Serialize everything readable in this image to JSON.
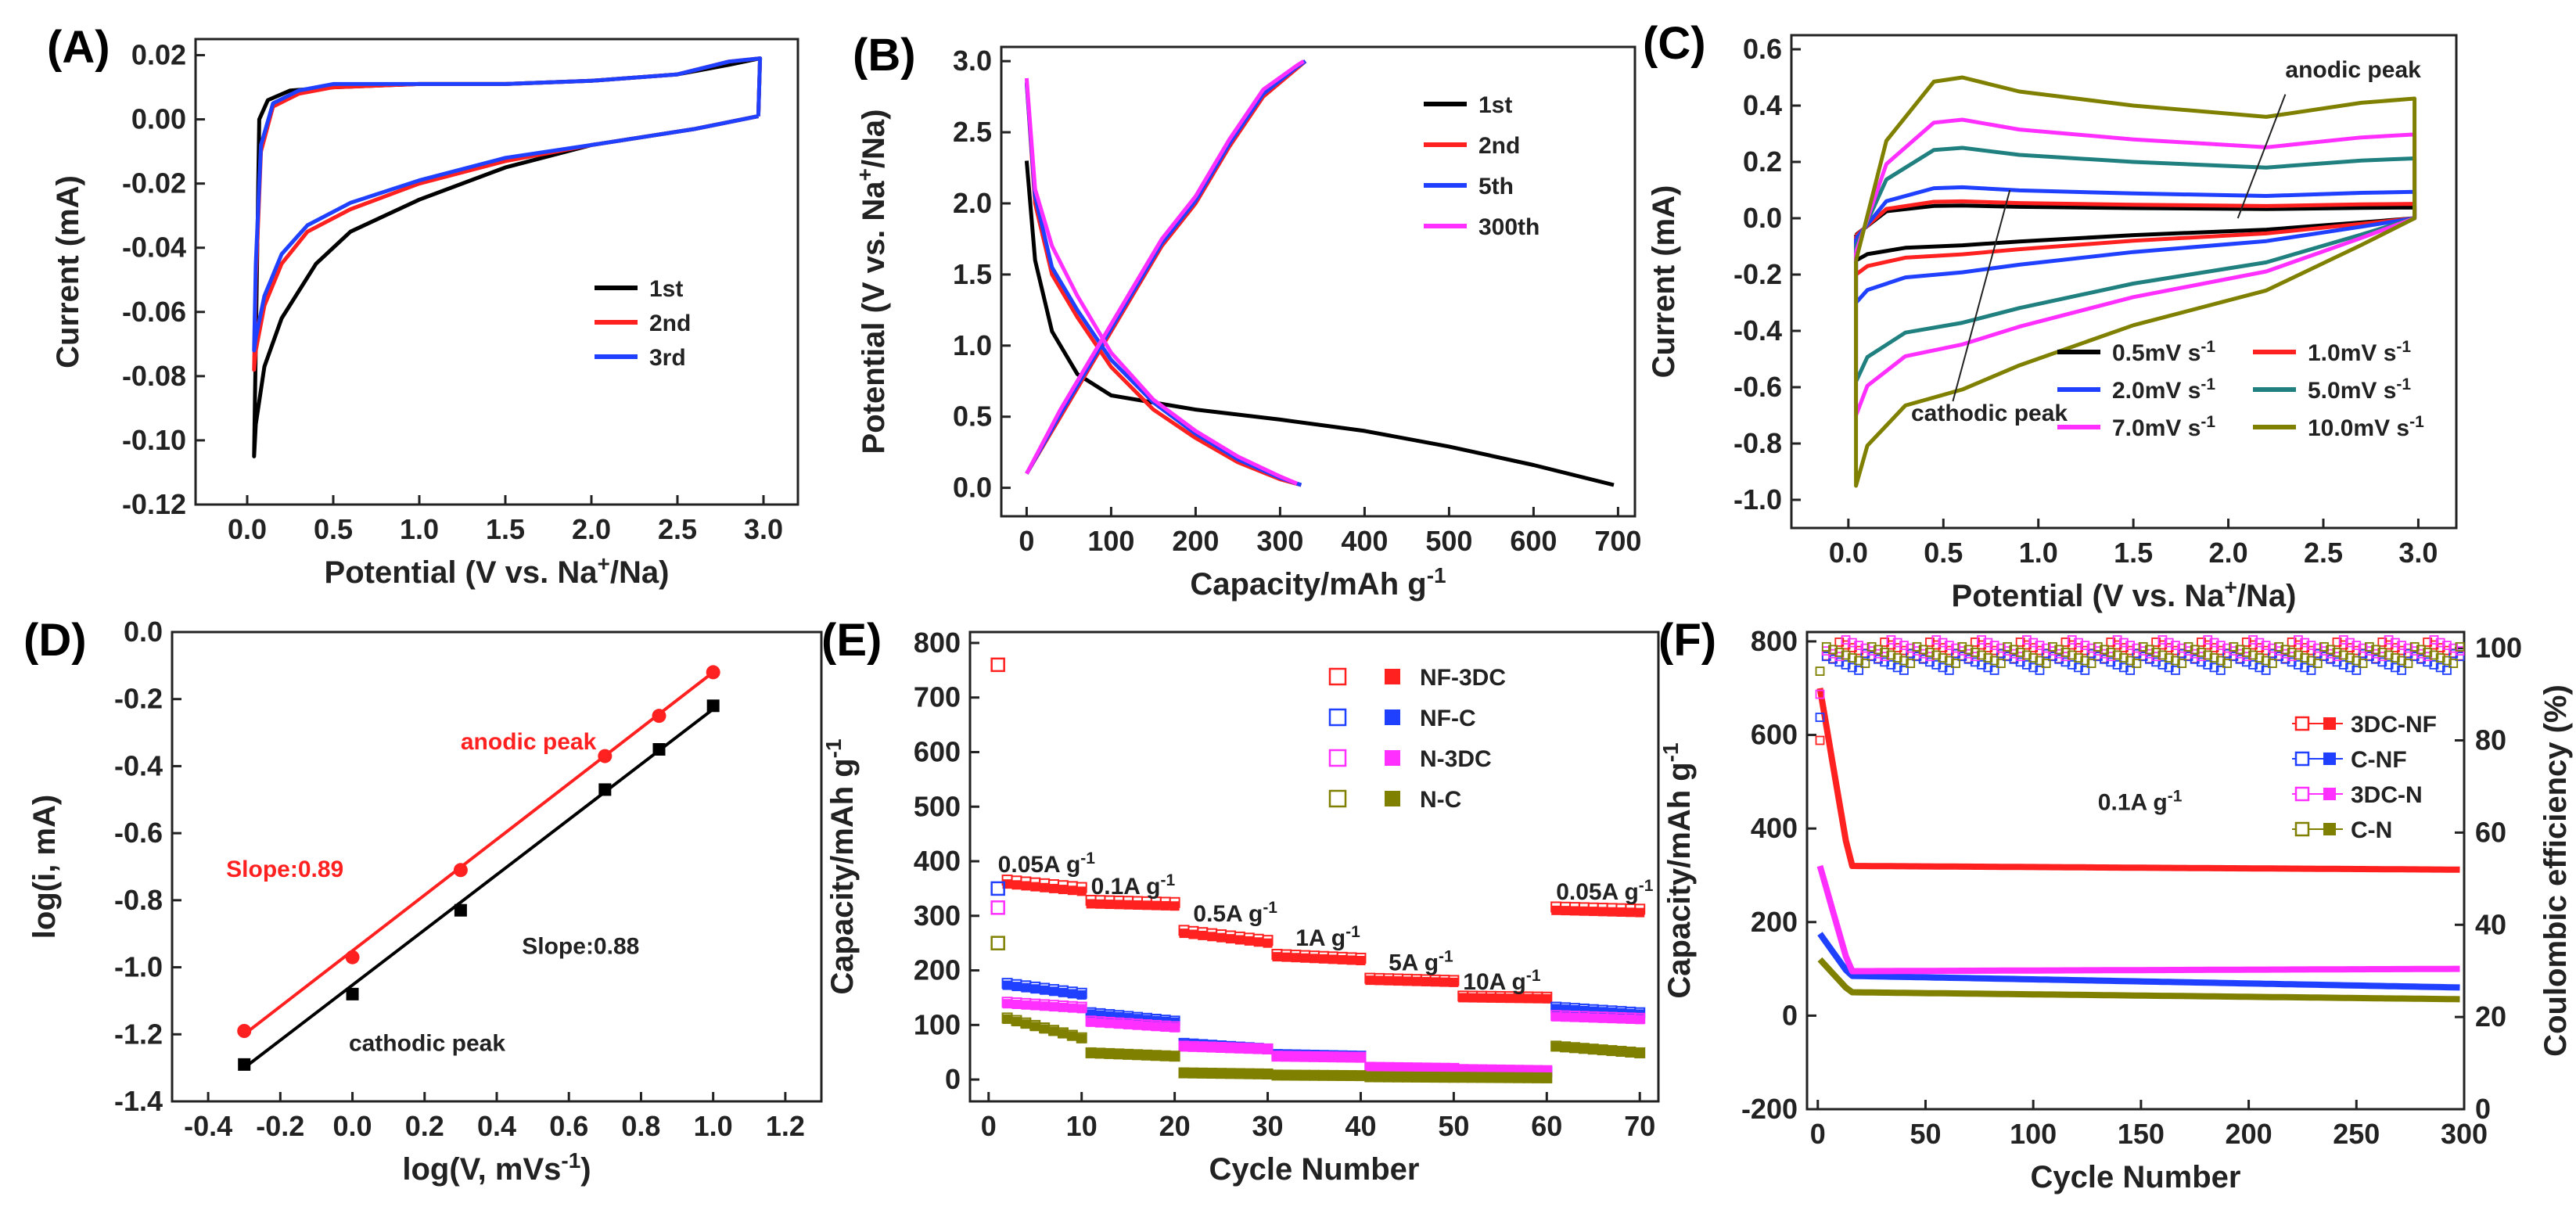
{
  "chart_data": [
    {
      "id": "A",
      "panel": "(A)",
      "type": "line",
      "xlabel": "Potential (V vs. Na+/Na)",
      "ylabel": "Current (mA)",
      "xlim": [
        -0.3,
        3.2
      ],
      "ylim": [
        -0.12,
        0.025
      ],
      "xticks": [
        0.0,
        0.5,
        1.0,
        1.5,
        2.0,
        2.5,
        3.0
      ],
      "xtick_labels": [
        "0.0",
        "0.5",
        "1.0",
        "1.5",
        "2.0",
        "2.5",
        "3.0"
      ],
      "yticks": [
        -0.12,
        -0.1,
        -0.08,
        -0.06,
        -0.04,
        -0.02,
        0.0,
        0.02
      ],
      "ytick_labels": [
        "-0.12",
        "-0.10",
        "-0.08",
        "-0.06",
        "-0.04",
        "-0.02",
        "0.00",
        "0.02"
      ],
      "legend": "center-right",
      "series": [
        {
          "name": "1st",
          "color": "#000000",
          "x": [
            2.97,
            2.6,
            2.0,
            1.5,
            1.0,
            0.6,
            0.4,
            0.2,
            0.1,
            0.05,
            0.04,
            0.05,
            0.07,
            0.12,
            0.25,
            0.5,
            1.0,
            1.5,
            2.0,
            2.5,
            2.8,
            2.98,
            2.97
          ],
          "y": [
            0.001,
            -0.003,
            -0.008,
            -0.015,
            -0.025,
            -0.035,
            -0.045,
            -0.062,
            -0.077,
            -0.095,
            -0.105,
            -0.07,
            0.0,
            0.006,
            0.009,
            0.01,
            0.011,
            0.011,
            0.012,
            0.014,
            0.017,
            0.019,
            0.001
          ]
        },
        {
          "name": "2nd",
          "color": "#ff2020",
          "x": [
            2.97,
            2.6,
            2.0,
            1.5,
            1.0,
            0.6,
            0.35,
            0.2,
            0.1,
            0.05,
            0.04,
            0.05,
            0.08,
            0.15,
            0.3,
            0.5,
            1.0,
            1.5,
            2.0,
            2.5,
            2.8,
            2.98,
            2.97
          ],
          "y": [
            0.001,
            -0.003,
            -0.008,
            -0.013,
            -0.02,
            -0.028,
            -0.035,
            -0.045,
            -0.058,
            -0.072,
            -0.078,
            -0.05,
            -0.01,
            0.004,
            0.008,
            0.01,
            0.011,
            0.011,
            0.012,
            0.014,
            0.018,
            0.019,
            0.001
          ]
        },
        {
          "name": "3rd",
          "color": "#2040ff",
          "x": [
            2.97,
            2.6,
            2.0,
            1.5,
            1.0,
            0.6,
            0.35,
            0.2,
            0.1,
            0.05,
            0.04,
            0.05,
            0.08,
            0.15,
            0.3,
            0.5,
            1.0,
            1.5,
            2.0,
            2.5,
            2.8,
            2.98,
            2.97
          ],
          "y": [
            0.001,
            -0.003,
            -0.008,
            -0.012,
            -0.019,
            -0.026,
            -0.033,
            -0.042,
            -0.055,
            -0.068,
            -0.072,
            -0.045,
            -0.008,
            0.005,
            0.009,
            0.011,
            0.011,
            0.011,
            0.012,
            0.014,
            0.018,
            0.019,
            0.001
          ]
        }
      ]
    },
    {
      "id": "B",
      "panel": "(B)",
      "type": "line",
      "xlabel": "Capacity/mAh g-1",
      "ylabel": "Potential (V vs. Na+/Na)",
      "xlim": [
        -30,
        720
      ],
      "ylim": [
        -0.2,
        3.1
      ],
      "xticks": [
        0,
        100,
        200,
        300,
        400,
        500,
        600,
        700
      ],
      "xtick_labels": [
        "0",
        "100",
        "200",
        "300",
        "400",
        "500",
        "600",
        "700"
      ],
      "yticks": [
        0.0,
        0.5,
        1.0,
        1.5,
        2.0,
        2.5,
        3.0
      ],
      "ytick_labels": [
        "0.0",
        "0.5",
        "1.0",
        "1.5",
        "2.0",
        "2.5",
        "3.0"
      ],
      "legend": "top-right",
      "series": [
        {
          "name": "1st",
          "color": "#000000",
          "x": [
            0,
            10,
            30,
            60,
            100,
            200,
            300,
            400,
            500,
            600,
            695
          ],
          "y": [
            2.3,
            1.6,
            1.1,
            0.8,
            0.65,
            0.55,
            0.48,
            0.4,
            0.29,
            0.16,
            0.02
          ]
        },
        {
          "name": "2nd",
          "color": "#ff2020",
          "x": [
            0,
            10,
            30,
            60,
            100,
            150,
            200,
            250,
            300,
            325,
            0,
            40,
            80,
            120,
            160,
            200,
            240,
            280,
            320,
            330
          ],
          "y": [
            2.85,
            2.0,
            1.5,
            1.2,
            0.85,
            0.55,
            0.35,
            0.18,
            0.06,
            0.02,
            0.1,
            0.5,
            0.9,
            1.3,
            1.7,
            2.0,
            2.4,
            2.75,
            2.95,
            3.0
          ]
        },
        {
          "name": "5th",
          "color": "#2040ff",
          "x": [
            0,
            10,
            30,
            60,
            100,
            150,
            200,
            250,
            300,
            325,
            0,
            40,
            80,
            120,
            160,
            200,
            240,
            280,
            320,
            330
          ],
          "y": [
            2.85,
            2.05,
            1.55,
            1.25,
            0.9,
            0.6,
            0.38,
            0.2,
            0.07,
            0.02,
            0.1,
            0.52,
            0.92,
            1.32,
            1.72,
            2.02,
            2.42,
            2.77,
            2.96,
            3.0
          ]
        },
        {
          "name": "300th",
          "color": "#ff30ff",
          "x": [
            0,
            10,
            30,
            60,
            100,
            150,
            200,
            250,
            300,
            320,
            0,
            40,
            80,
            120,
            160,
            200,
            240,
            280,
            320,
            328
          ],
          "y": [
            2.88,
            2.1,
            1.7,
            1.35,
            0.95,
            0.62,
            0.4,
            0.22,
            0.08,
            0.03,
            0.1,
            0.55,
            0.95,
            1.35,
            1.75,
            2.05,
            2.45,
            2.8,
            2.97,
            3.0
          ]
        }
      ]
    },
    {
      "id": "C",
      "panel": "(C)",
      "type": "line",
      "xlabel": "Potential (V vs. Na+/Na)",
      "ylabel": "Current (mA)",
      "xlim": [
        -0.3,
        3.2
      ],
      "ylim": [
        -1.1,
        0.65
      ],
      "xticks": [
        0.0,
        0.5,
        1.0,
        1.5,
        2.0,
        2.5,
        3.0
      ],
      "xtick_labels": [
        "0.0",
        "0.5",
        "1.0",
        "1.5",
        "2.0",
        "2.5",
        "3.0"
      ],
      "yticks": [
        -1.0,
        -0.8,
        -0.6,
        -0.4,
        -0.2,
        0.0,
        0.2,
        0.4,
        0.6
      ],
      "ytick_labels": [
        "-1.0",
        "-0.8",
        "-0.6",
        "-0.4",
        "-0.2",
        "0.0",
        "0.2",
        "0.4",
        "0.6"
      ],
      "legend": "bottom-right",
      "annotations": [
        "anodic peak",
        "cathodic peak"
      ],
      "series": [
        {
          "name": "0.5mV s-1",
          "color": "#000000",
          "amp": 0.045,
          "cath": 0.15
        },
        {
          "name": "1.0mV s-1",
          "color": "#ff2020",
          "amp": 0.06,
          "cath": 0.2
        },
        {
          "name": "2.0mV s-1",
          "color": "#2040ff",
          "amp": 0.11,
          "cath": 0.3
        },
        {
          "name": "5.0mV s-1",
          "color": "#208080",
          "amp": 0.25,
          "cath": 0.58
        },
        {
          "name": "7.0mV s-1",
          "color": "#ff30ff",
          "amp": 0.35,
          "cath": 0.7
        },
        {
          "name": "10.0mV s-1",
          "color": "#808000",
          "amp": 0.5,
          "cath": 0.95
        }
      ]
    },
    {
      "id": "D",
      "panel": "(D)",
      "type": "scatter",
      "xlabel": "log(V, mVs-1)",
      "ylabel": "log(i, mA)",
      "xlim": [
        -0.5,
        1.3
      ],
      "ylim": [
        -1.4,
        0.0
      ],
      "xticks": [
        -0.4,
        -0.2,
        0.0,
        0.2,
        0.4,
        0.6,
        0.8,
        1.0,
        1.2
      ],
      "xtick_labels": [
        "-0.4",
        "-0.2",
        "0.0",
        "0.2",
        "0.4",
        "0.6",
        "0.8",
        "1.0",
        "1.2"
      ],
      "yticks": [
        -1.4,
        -1.2,
        -1.0,
        -0.8,
        -0.6,
        -0.4,
        -0.2,
        0.0
      ],
      "ytick_labels": [
        "-1.4",
        "-1.2",
        "-1.0",
        "-0.8",
        "-0.6",
        "-0.4",
        "-0.2",
        "0.0"
      ],
      "series": [
        {
          "name": "anodic peak",
          "color": "#ff2020",
          "marker": "circle",
          "slope_label": "Slope:0.89",
          "x": [
            -0.3,
            0.0,
            0.3,
            0.7,
            0.85,
            1.0
          ],
          "y": [
            -1.19,
            -0.97,
            -0.71,
            -0.37,
            -0.25,
            -0.12
          ],
          "fit": [
            [
              -0.3,
              -1.2
            ],
            [
              1.0,
              -0.12
            ]
          ]
        },
        {
          "name": "cathodic peak",
          "color": "#000000",
          "marker": "square",
          "slope_label": "Slope:0.88",
          "x": [
            -0.3,
            0.0,
            0.3,
            0.7,
            0.85,
            1.0
          ],
          "y": [
            -1.29,
            -1.08,
            -0.83,
            -0.47,
            -0.35,
            -0.22
          ],
          "fit": [
            [
              -0.3,
              -1.3
            ],
            [
              1.0,
              -0.23
            ]
          ]
        }
      ]
    },
    {
      "id": "E",
      "panel": "(E)",
      "type": "scatter",
      "xlabel": "Cycle Number",
      "ylabel": "Capacity/mAh g-1",
      "xlim": [
        -2,
        72
      ],
      "ylim": [
        -40,
        820
      ],
      "xticks": [
        0,
        10,
        20,
        30,
        40,
        50,
        60,
        70
      ],
      "xtick_labels": [
        "0",
        "10",
        "20",
        "30",
        "40",
        "50",
        "60",
        "70"
      ],
      "yticks": [
        0,
        100,
        200,
        300,
        400,
        500,
        600,
        700,
        800
      ],
      "ytick_labels": [
        "0",
        "100",
        "200",
        "300",
        "400",
        "500",
        "600",
        "700",
        "800"
      ],
      "legend": "top-right",
      "rate_labels": [
        {
          "text": "0.05A g-1",
          "x": 1,
          "y": 380
        },
        {
          "text": "0.1A g-1",
          "x": 11,
          "y": 340
        },
        {
          "text": "0.5A g-1",
          "x": 22,
          "y": 290
        },
        {
          "text": "1A g-1",
          "x": 33,
          "y": 245
        },
        {
          "text": "5A g-1",
          "x": 43,
          "y": 200
        },
        {
          "text": "10A g-1",
          "x": 51,
          "y": 165
        },
        {
          "text": "0.05A g-1",
          "x": 61,
          "y": 330
        }
      ],
      "series": [
        {
          "name": "NF-3DC",
          "color": "#ff2020",
          "first": 760,
          "segments": [
            [
              360,
              345
            ],
            [
              322,
              318
            ],
            [
              268,
              250
            ],
            [
              225,
              218
            ],
            [
              182,
              178
            ],
            [
              150,
              148
            ],
            [
              310,
              306
            ]
          ]
        },
        {
          "name": "NF-C",
          "color": "#2040ff",
          "first": 350,
          "segments": [
            [
              175,
              155
            ],
            [
              120,
              105
            ],
            [
              65,
              55
            ],
            [
              45,
              42
            ],
            [
              20,
              18
            ],
            [
              15,
              14
            ],
            [
              130,
              120
            ]
          ]
        },
        {
          "name": "N-3DC",
          "color": "#ff30ff",
          "first": 315,
          "segments": [
            [
              140,
              130
            ],
            [
              105,
              95
            ],
            [
              60,
              55
            ],
            [
              42,
              40
            ],
            [
              22,
              20
            ],
            [
              18,
              16
            ],
            [
              115,
              110
            ]
          ]
        },
        {
          "name": "N-C",
          "color": "#808000",
          "first": 250,
          "segments": [
            [
              115,
              75
            ],
            [
              48,
              42
            ],
            [
              12,
              10
            ],
            [
              8,
              7
            ],
            [
              5,
              4
            ],
            [
              4,
              3
            ],
            [
              60,
              48
            ]
          ]
        }
      ]
    },
    {
      "id": "F",
      "panel": "(F)",
      "type": "scatter",
      "xlabel": "Cycle Number",
      "ylabel": "Capacity/mAh g-1",
      "y2label": "Coulombic efficiency (%)",
      "xlim": [
        -5,
        300
      ],
      "ylim": [
        -200,
        820
      ],
      "y2lim": [
        0,
        103.5
      ],
      "xticks": [
        0,
        50,
        100,
        150,
        200,
        250,
        300
      ],
      "xtick_labels": [
        "0",
        "50",
        "100",
        "150",
        "200",
        "250",
        "300"
      ],
      "yticks": [
        -200,
        0,
        200,
        400,
        600,
        800
      ],
      "ytick_labels": [
        "-200",
        "0",
        "200",
        "400",
        "600",
        "800"
      ],
      "y2ticks": [
        0,
        20,
        40,
        60,
        80,
        100
      ],
      "y2tick_labels": [
        "0",
        "20",
        "40",
        "60",
        "80",
        "100"
      ],
      "legend": "top-right",
      "annotation": "0.1A g-1",
      "series": [
        {
          "name": "3DC-NF",
          "color": "#ff2020",
          "cap_start": 700,
          "cap_plateau": 320,
          "cap_end": 312,
          "ce_level": 99.5
        },
        {
          "name": "C-NF",
          "color": "#2040ff",
          "cap_start": 175,
          "cap_plateau": 85,
          "cap_end": 60,
          "ce_level": 97
        },
        {
          "name": "3DC-N",
          "color": "#ff30ff",
          "cap_start": 320,
          "cap_plateau": 95,
          "cap_end": 100,
          "ce_level": 100
        },
        {
          "name": "C-N",
          "color": "#808000",
          "cap_start": 120,
          "cap_plateau": 50,
          "cap_end": 35,
          "ce_level": 98.5
        }
      ]
    }
  ]
}
